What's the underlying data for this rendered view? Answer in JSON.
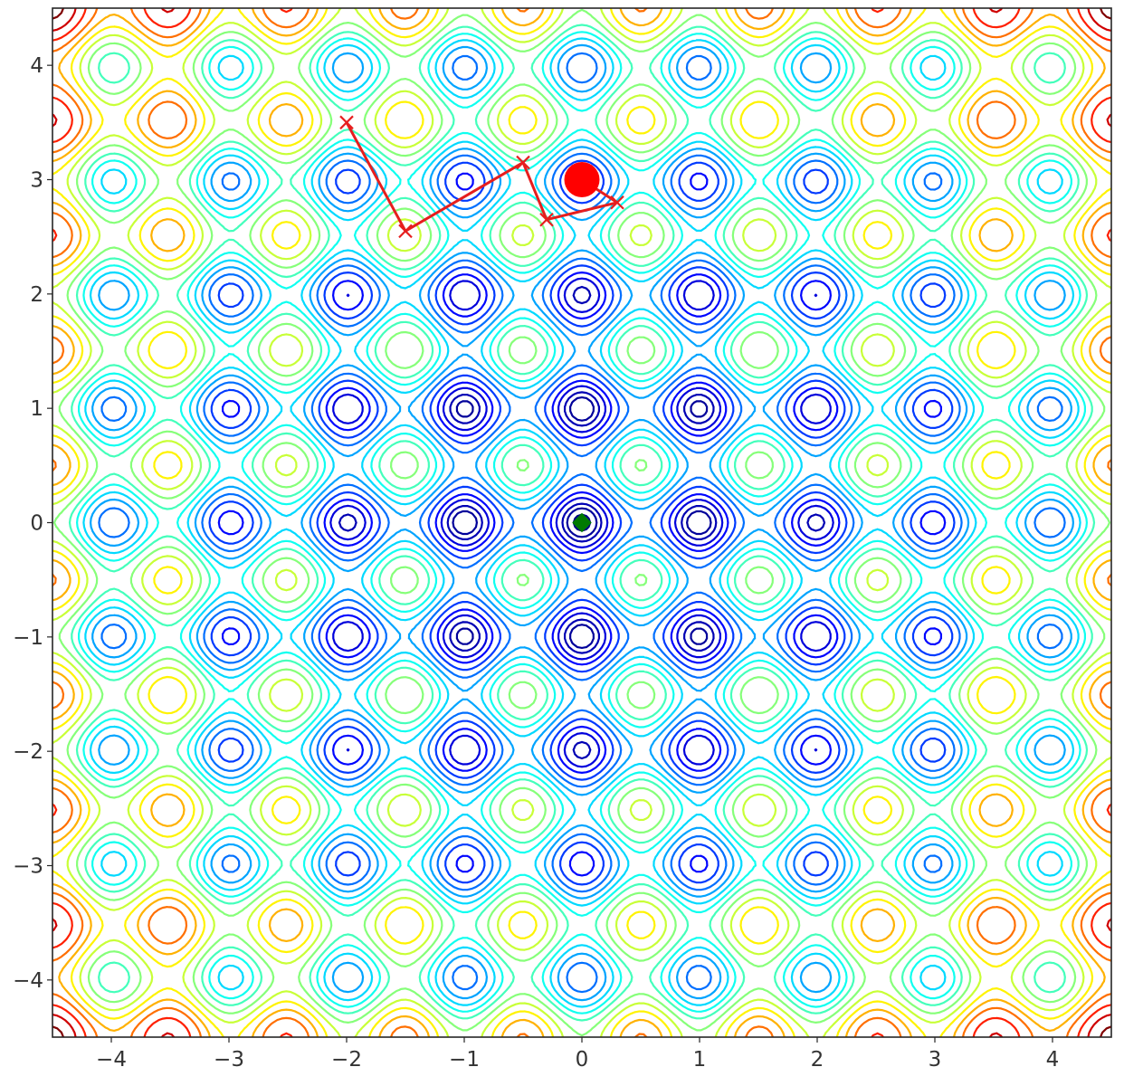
{
  "chart_data": {
    "type": "contour",
    "function": "rastrigin",
    "title": "",
    "xlabel": "",
    "ylabel": "",
    "xlim": [
      -4.5,
      4.5
    ],
    "ylim": [
      -4.5,
      4.5
    ],
    "xticks": [
      -4,
      -3,
      -2,
      -1,
      0,
      1,
      2,
      3,
      4
    ],
    "yticks": [
      -4,
      -3,
      -2,
      -1,
      0,
      1,
      2,
      3,
      4
    ],
    "x_tick_labels": [
      "−4",
      "−3",
      "−2",
      "−1",
      "0",
      "1",
      "2",
      "3",
      "4"
    ],
    "y_tick_labels": [
      "−4",
      "−3",
      "−2",
      "−1",
      "0",
      "1",
      "2",
      "3",
      "4"
    ],
    "contour_levels": [
      1,
      3,
      5,
      8,
      11,
      15,
      19,
      23,
      27,
      31,
      35,
      40,
      45,
      50,
      55,
      60,
      66,
      72,
      78
    ],
    "colormap": "jet",
    "grid": false,
    "series": [
      {
        "type": "line-with-markers",
        "color": "#e61e1e",
        "marker": "x",
        "points": [
          [
            -2.0,
            3.5
          ],
          [
            -1.5,
            2.55
          ],
          [
            -0.5,
            3.15
          ],
          [
            -0.3,
            2.65
          ],
          [
            0.3,
            2.8
          ],
          [
            0.0,
            3.0
          ]
        ]
      },
      {
        "type": "cluster",
        "color": "#ff0000",
        "center": [
          0.0,
          3.0
        ],
        "radius": 0.15
      },
      {
        "type": "marker",
        "marker": "diamond",
        "color": "#007a00",
        "points": [
          [
            0.0,
            0.0
          ]
        ]
      }
    ]
  }
}
